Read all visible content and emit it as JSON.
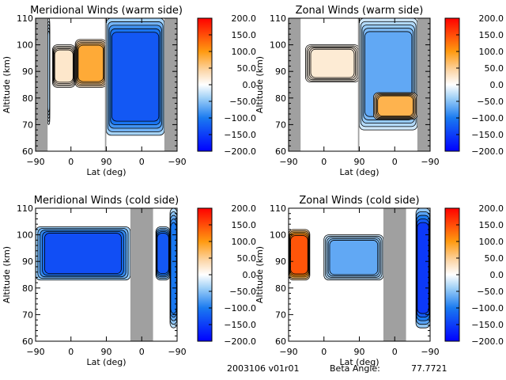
{
  "chart_data": [
    {
      "type": "contour",
      "title": "Meridional Winds (warm side)",
      "xlabel": "Lat (deg)",
      "ylabel": "Altitude (km)",
      "xticks": [
        "-90",
        "0",
        "90",
        "0",
        "-90"
      ],
      "yticks": [
        "60",
        "70",
        "80",
        "90",
        "100",
        "110"
      ],
      "ylim": [
        60,
        110
      ],
      "colorbar": {
        "ticks": [
          "200.0",
          "150.0",
          "100.0",
          "50.0",
          "0.0",
          "-50.0",
          "-100.0",
          "-150.0",
          "-200.0"
        ],
        "range": [
          -200,
          200
        ]
      },
      "missing_bands": [
        [
          0,
          0.085
        ],
        [
          0.49,
          0.5
        ],
        [
          0.91,
          1.0
        ]
      ],
      "regions": [
        {
          "x": [
            0.28,
            0.5
          ],
          "y": [
            84,
            102
          ],
          "value": 100
        },
        {
          "x": [
            0.12,
            0.28
          ],
          "y": [
            84,
            100
          ],
          "value": 30
        },
        {
          "x": [
            0.5,
            0.91
          ],
          "y": [
            66,
            110
          ],
          "value": -150
        },
        {
          "x": [
            0.085,
            0.1
          ],
          "y": [
            70,
            110
          ],
          "value": -40
        }
      ]
    },
    {
      "type": "contour",
      "title": "Zonal Winds (warm side)",
      "xlabel": "Lat (deg)",
      "ylabel": "Altitude (km)",
      "xticks": [
        "-90",
        "0",
        "90",
        "0",
        "-90"
      ],
      "yticks": [
        "60",
        "70",
        "80",
        "90",
        "100",
        "110"
      ],
      "ylim": [
        60,
        110
      ],
      "colorbar": {
        "ticks": [
          "200.0",
          "150.0",
          "100.0",
          "50.0",
          "0.0",
          "-50.0",
          "-100.0",
          "-150.0",
          "-200.0"
        ],
        "range": [
          -200,
          200
        ]
      },
      "missing_bands": [
        [
          0,
          0.085
        ],
        [
          0.49,
          0.5
        ],
        [
          0.91,
          1.0
        ]
      ],
      "regions": [
        {
          "x": [
            0.12,
            0.5
          ],
          "y": [
            86,
            100
          ],
          "value": 25
        },
        {
          "x": [
            0.5,
            0.91
          ],
          "y": [
            68,
            110
          ],
          "value": -80
        },
        {
          "x": [
            0.6,
            0.91
          ],
          "y": [
            72,
            82
          ],
          "value": 90
        }
      ]
    },
    {
      "type": "contour",
      "title": "Meridional Winds (cold side)",
      "xlabel": "Lat (deg)",
      "ylabel": "Altitude (km)",
      "xticks": [
        "-90",
        "0",
        "90",
        "0",
        "-90"
      ],
      "yticks": [
        "60",
        "70",
        "80",
        "90",
        "100",
        "110"
      ],
      "ylim": [
        60,
        110
      ],
      "colorbar": {
        "ticks": [
          "200.0",
          "150.0",
          "100.0",
          "50.0",
          "0.0",
          "-50.0",
          "-100.0",
          "-150.0",
          "-200.0"
        ],
        "range": [
          -200,
          200
        ]
      },
      "missing_bands": [
        [
          0.67,
          0.83
        ]
      ],
      "regions": [
        {
          "x": [
            0.0,
            0.67
          ],
          "y": [
            83,
            103
          ],
          "value": -160
        },
        {
          "x": [
            0.85,
            0.95
          ],
          "y": [
            83,
            103
          ],
          "value": -150
        },
        {
          "x": [
            0.95,
            1.0
          ],
          "y": [
            65,
            110
          ],
          "value": -120
        }
      ]
    },
    {
      "type": "contour",
      "title": "Zonal Winds (cold side)",
      "xlabel": "Lat (deg)",
      "ylabel": "Altitude (km)",
      "xticks": [
        "-90",
        "0",
        "90",
        "0",
        "-90"
      ],
      "yticks": [
        "60",
        "70",
        "80",
        "90",
        "100",
        "110"
      ],
      "ylim": [
        60,
        110
      ],
      "colorbar": {
        "ticks": [
          "200.0",
          "150.0",
          "100.0",
          "50.0",
          "0.0",
          "-50.0",
          "-100.0",
          "-150.0",
          "-200.0"
        ],
        "range": [
          -200,
          200
        ]
      },
      "missing_bands": [
        [
          0.67,
          0.83
        ]
      ],
      "regions": [
        {
          "x": [
            0.0,
            0.15
          ],
          "y": [
            83,
            102
          ],
          "value": 170
        },
        {
          "x": [
            0.25,
            0.67
          ],
          "y": [
            83,
            100
          ],
          "value": -80
        },
        {
          "x": [
            0.9,
            1.0
          ],
          "y": [
            65,
            110
          ],
          "value": -180
        }
      ]
    }
  ],
  "footer": {
    "id": "2003106 v01r01",
    "beta_label": "Beta Angle:",
    "beta_value": "77.7721"
  }
}
